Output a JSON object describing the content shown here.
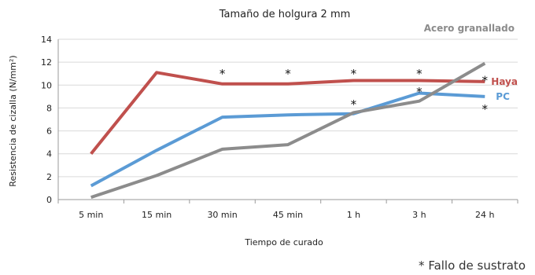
{
  "chart_data": {
    "type": "line",
    "title": "Tamaño de holgura 2 mm",
    "xlabel": "Tiempo de curado",
    "ylabel": "Resistencia de cizalla (N/mm²)",
    "ylim": [
      0,
      14
    ],
    "yticks": [
      0,
      2,
      4,
      6,
      8,
      10,
      12,
      14
    ],
    "categories": [
      "5 min",
      "15 min",
      "30 min",
      "45 min",
      "1 h",
      "3 h",
      "24 h"
    ],
    "grid": true,
    "series": [
      {
        "name": "Haya",
        "color": "#c0504d",
        "values": [
          4.0,
          11.1,
          10.1,
          10.1,
          10.4,
          10.4,
          10.3
        ]
      },
      {
        "name": "PC",
        "color": "#5b9bd5",
        "values": [
          1.2,
          4.3,
          7.2,
          7.4,
          7.5,
          9.3,
          9.0
        ]
      },
      {
        "name": "Acero granallado",
        "color": "#8c8c8c",
        "values": [
          0.2,
          2.1,
          4.4,
          4.8,
          7.6,
          8.6,
          11.9
        ]
      }
    ],
    "stars": [
      {
        "category": "30 min",
        "y": 11.2
      },
      {
        "category": "45 min",
        "y": 11.2
      },
      {
        "category": "1 h",
        "y": 11.2
      },
      {
        "category": "3 h",
        "y": 11.2
      },
      {
        "category": "24 h",
        "y": 10.6
      },
      {
        "category": "1 h",
        "y": 8.5
      },
      {
        "category": "3 h",
        "y": 9.6
      },
      {
        "category": "24 h",
        "y": 8.1
      }
    ],
    "star_symbol": "*",
    "footnote": "* Fallo de sustrato"
  }
}
